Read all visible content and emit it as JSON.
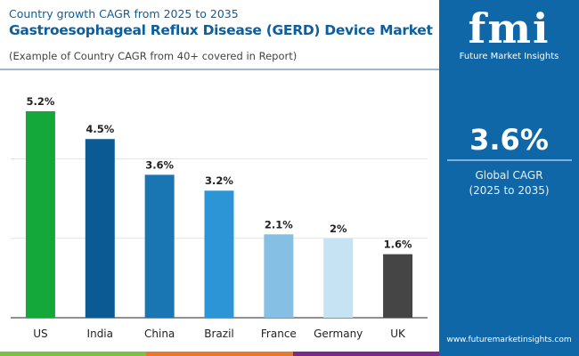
{
  "header": {
    "subtitle": "Country growth CAGR from 2025 to 2035",
    "title": "Gastroesophageal Reflux Disease (GERD) Device Market",
    "note": "(Example of Country CAGR from 40+ covered in Report)"
  },
  "panel": {
    "logo_text": "fmi",
    "logo_name": "Future Market Insights",
    "value": "3.6%",
    "label": "Global CAGR",
    "period": "(2025 to 2035)",
    "url": "www.futuremarketinsights.com",
    "color": "#0f67a8"
  },
  "chart_data": {
    "type": "bar",
    "categories": [
      "US",
      "India",
      "China",
      "Brazil",
      "France",
      "Germany",
      "UK"
    ],
    "values": [
      5.2,
      4.5,
      3.6,
      3.2,
      2.1,
      2.0,
      1.6
    ],
    "data_labels": [
      "5.2%",
      "4.5%",
      "3.6%",
      "3.2%",
      "2.1%",
      "2%",
      "1.6%"
    ],
    "colors": [
      "#14a83b",
      "#0b5a94",
      "#1a76b2",
      "#2b95d6",
      "#86bfe4",
      "#c6e3f4",
      "#454545"
    ],
    "ylim": [
      0,
      5.4
    ],
    "grid": true
  },
  "stripe_colors": [
    "#7cc142",
    "#e8782a",
    "#7a2b8a"
  ]
}
